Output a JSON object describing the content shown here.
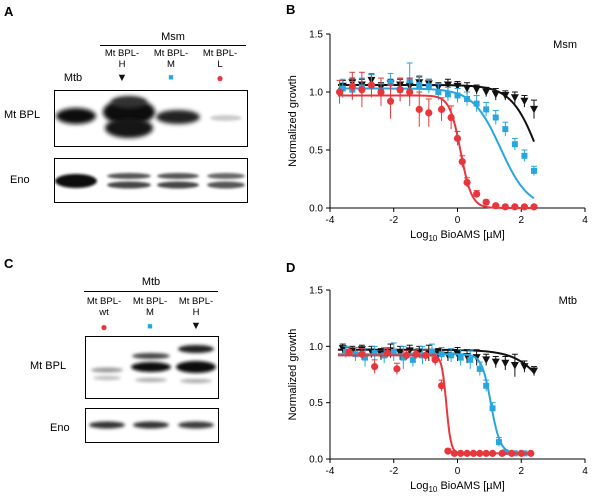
{
  "panels": {
    "A": {
      "letter": "A",
      "group_label": "Msm",
      "lanes": [
        {
          "label_lines": [
            "Mtb"
          ],
          "symbol": ""
        },
        {
          "label_lines": [
            "Mt BPL-",
            "H"
          ],
          "symbol": "▼"
        },
        {
          "label_lines": [
            "Mt BPL-",
            "M"
          ],
          "symbol": "■"
        },
        {
          "label_lines": [
            "Mt BPL-",
            "L"
          ],
          "symbol": "●"
        }
      ],
      "rows": [
        "Mt BPL",
        "Eno"
      ]
    },
    "C": {
      "letter": "C",
      "group_label": "Mtb",
      "lanes": [
        {
          "label_lines": [
            "Mt BPL-",
            "wt"
          ],
          "symbol": "●"
        },
        {
          "label_lines": [
            "Mt BPL-",
            "M"
          ],
          "symbol": "■"
        },
        {
          "label_lines": [
            "Mt BPL-",
            "H"
          ],
          "symbol": "▼"
        }
      ],
      "rows": [
        "Mt BPL",
        "Eno"
      ]
    }
  },
  "colors": {
    "red": "#e8373c",
    "blue": "#29a6de",
    "black": "#111111"
  },
  "chart_data": [
    {
      "panel": "B",
      "type": "scatter",
      "title": "Msm",
      "xlabel_pre": "Log",
      "xlabel_sub": "10",
      "xlabel_post": " BioAMS [µM]",
      "ylabel": "Normalized growth",
      "xlim": [
        -4,
        4
      ],
      "ylim": [
        0,
        1.5
      ],
      "xticks": [
        -4,
        -2,
        0,
        2,
        4
      ],
      "yticks": [
        0.0,
        0.5,
        1.0,
        1.5
      ],
      "ytick_labels": [
        "0.0",
        "0.5",
        "1.0",
        "1.5"
      ],
      "series": [
        {
          "name": "Mt BPL-H",
          "color": "black",
          "marker": "triangle",
          "x": [
            -3.6,
            -3.3,
            -3.0,
            -2.7,
            -2.4,
            -2.1,
            -1.8,
            -1.5,
            -1.2,
            -0.9,
            -0.6,
            -0.3,
            0.0,
            0.3,
            0.6,
            0.9,
            1.2,
            1.5,
            1.8,
            2.1,
            2.4
          ],
          "y": [
            1.05,
            1.08,
            1.06,
            1.1,
            1.04,
            1.07,
            1.06,
            1.05,
            1.08,
            1.07,
            1.04,
            1.06,
            1.05,
            1.03,
            1.02,
            1.0,
            0.98,
            0.97,
            0.95,
            0.92,
            0.85
          ],
          "err": [
            0.05,
            0.04,
            0.05,
            0.05,
            0.04,
            0.04,
            0.05,
            0.04,
            0.05,
            0.04,
            0.04,
            0.05,
            0.04,
            0.05,
            0.04,
            0.04,
            0.05,
            0.04,
            0.05,
            0.05,
            0.08
          ],
          "fit": {
            "top": 1.06,
            "bottom": -0.2,
            "logec50": 2.6,
            "hill": 1.0
          }
        },
        {
          "name": "Mt BPL-M",
          "color": "blue",
          "marker": "square",
          "x": [
            -3.6,
            -3.3,
            -3.0,
            -2.7,
            -2.4,
            -2.1,
            -1.8,
            -1.5,
            -1.2,
            -0.9,
            -0.6,
            -0.3,
            0.0,
            0.3,
            0.6,
            0.9,
            1.2,
            1.5,
            1.8,
            2.1,
            2.4
          ],
          "y": [
            1.03,
            1.02,
            1.04,
            1.05,
            1.0,
            1.08,
            1.02,
            1.1,
            1.06,
            1.05,
            1.0,
            0.98,
            0.97,
            0.94,
            0.9,
            0.85,
            0.78,
            0.68,
            0.55,
            0.45,
            0.32
          ],
          "err": [
            0.08,
            0.07,
            0.08,
            0.1,
            0.07,
            0.08,
            0.1,
            0.15,
            0.08,
            0.06,
            0.07,
            0.06,
            0.06,
            0.06,
            0.07,
            0.06,
            0.06,
            0.06,
            0.05,
            0.05,
            0.04
          ],
          "fit": {
            "top": 1.03,
            "bottom": 0.0,
            "logec50": 1.35,
            "hill": 1.0
          }
        },
        {
          "name": "Mt BPL-L",
          "color": "red",
          "marker": "circle",
          "x": [
            -3.7,
            -3.3,
            -3.0,
            -2.7,
            -2.4,
            -2.1,
            -1.8,
            -1.5,
            -1.2,
            -0.9,
            -0.5,
            -0.2,
            0.0,
            0.15,
            0.3,
            0.6,
            0.9,
            1.2,
            1.5,
            1.8,
            2.1,
            2.4
          ],
          "y": [
            1.0,
            1.05,
            1.02,
            1.06,
            1.0,
            0.92,
            1.02,
            1.0,
            0.85,
            0.82,
            0.85,
            0.78,
            0.6,
            0.4,
            0.22,
            0.12,
            0.05,
            0.02,
            0.01,
            0.01,
            0.01,
            0.01
          ],
          "err": [
            0.1,
            0.12,
            0.15,
            0.1,
            0.12,
            0.15,
            0.1,
            0.12,
            0.15,
            0.12,
            0.1,
            0.1,
            0.06,
            0.05,
            0.04,
            0.03,
            0.02,
            0.01,
            0.01,
            0.01,
            0.01,
            0.01
          ],
          "fit": {
            "top": 0.97,
            "bottom": 0.0,
            "logec50": 0.1,
            "hill": 2.5
          }
        }
      ]
    },
    {
      "panel": "D",
      "type": "scatter",
      "title": "Mtb",
      "xlabel_pre": "Log",
      "xlabel_sub": "10",
      "xlabel_post": " BioAMS [µM]",
      "ylabel": "Normalized growth",
      "xlim": [
        -4,
        4
      ],
      "ylim": [
        0,
        1.5
      ],
      "xticks": [
        -4,
        -2,
        0,
        2,
        4
      ],
      "yticks": [
        0.0,
        0.5,
        1.0,
        1.5
      ],
      "ytick_labels": [
        "0.0",
        "0.5",
        "1.0",
        "1.5"
      ],
      "series": [
        {
          "name": "Mt BPL-H",
          "color": "black",
          "marker": "triangle",
          "x": [
            -3.6,
            -3.3,
            -3.0,
            -2.7,
            -2.4,
            -2.1,
            -1.8,
            -1.5,
            -1.2,
            -0.9,
            -0.6,
            -0.3,
            0.0,
            0.3,
            0.6,
            0.9,
            1.2,
            1.5,
            1.8,
            2.1,
            2.4
          ],
          "y": [
            0.98,
            0.96,
            0.97,
            0.95,
            0.93,
            0.96,
            0.94,
            0.96,
            0.95,
            0.94,
            0.93,
            0.92,
            0.93,
            0.91,
            0.9,
            0.88,
            0.86,
            0.85,
            0.83,
            0.82,
            0.78
          ],
          "err": [
            0.04,
            0.04,
            0.04,
            0.05,
            0.05,
            0.06,
            0.06,
            0.05,
            0.05,
            0.07,
            0.05,
            0.05,
            0.06,
            0.06,
            0.07,
            0.05,
            0.05,
            0.06,
            0.1,
            0.05,
            0.04
          ],
          "fit": {
            "top": 0.97,
            "bottom": -0.3,
            "logec50": 3.3,
            "hill": 0.8
          }
        },
        {
          "name": "Mt BPL-M",
          "color": "blue",
          "marker": "square",
          "x": [
            -3.5,
            -3.2,
            -2.9,
            -2.6,
            -2.3,
            -2.0,
            -1.7,
            -1.4,
            -1.1,
            -0.8,
            -0.5,
            -0.2,
            0.1,
            0.4,
            0.7,
            0.9,
            1.1,
            1.3,
            1.5,
            1.8,
            2.1
          ],
          "y": [
            0.95,
            0.93,
            0.9,
            0.94,
            0.92,
            0.95,
            0.9,
            0.88,
            0.92,
            0.95,
            0.93,
            0.92,
            0.9,
            0.88,
            0.8,
            0.65,
            0.45,
            0.15,
            0.06,
            0.05,
            0.05
          ],
          "err": [
            0.05,
            0.06,
            0.08,
            0.06,
            0.07,
            0.08,
            0.1,
            0.06,
            0.08,
            0.07,
            0.06,
            0.06,
            0.07,
            0.08,
            0.06,
            0.05,
            0.05,
            0.04,
            0.02,
            0.01,
            0.01
          ],
          "fit": {
            "top": 0.93,
            "bottom": 0.05,
            "logec50": 1.05,
            "hill": 3.0
          }
        },
        {
          "name": "Mt BPL-wt",
          "color": "red",
          "marker": "circle",
          "x": [
            -3.4,
            -3.0,
            -2.6,
            -2.2,
            -1.9,
            -1.6,
            -1.3,
            -1.0,
            -0.7,
            -0.5,
            -0.3,
            -0.1,
            0.1,
            0.3,
            0.5,
            0.7,
            0.9,
            1.1,
            1.4,
            1.7,
            2.0,
            2.3
          ],
          "y": [
            0.95,
            0.93,
            0.82,
            0.94,
            0.8,
            0.92,
            0.93,
            0.92,
            0.88,
            0.65,
            0.07,
            0.05,
            0.05,
            0.05,
            0.05,
            0.05,
            0.05,
            0.05,
            0.05,
            0.05,
            0.05,
            0.05
          ],
          "err": [
            0.04,
            0.05,
            0.06,
            0.04,
            0.05,
            0.04,
            0.04,
            0.05,
            0.05,
            0.05,
            0.02,
            0.01,
            0.01,
            0.01,
            0.01,
            0.01,
            0.01,
            0.01,
            0.01,
            0.01,
            0.01,
            0.01
          ],
          "fit": {
            "top": 0.92,
            "bottom": 0.05,
            "logec50": -0.35,
            "hill": 6.0
          }
        }
      ]
    }
  ]
}
